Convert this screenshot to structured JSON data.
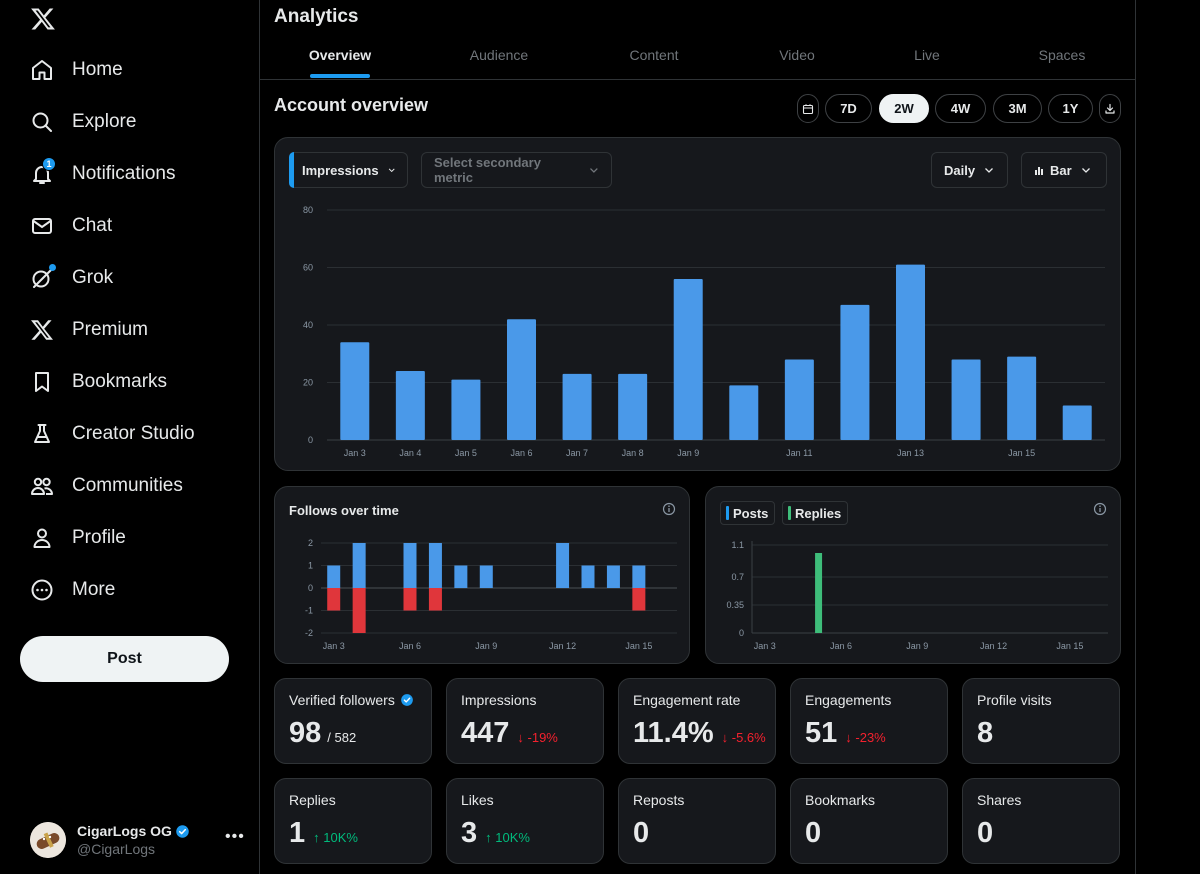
{
  "sidebar": {
    "nav": [
      {
        "label": "Home",
        "icon": "home-icon"
      },
      {
        "label": "Explore",
        "icon": "search-icon"
      },
      {
        "label": "Notifications",
        "icon": "bell-icon",
        "badge": "1"
      },
      {
        "label": "Chat",
        "icon": "mail-icon"
      },
      {
        "label": "Grok",
        "icon": "grok-icon"
      },
      {
        "label": "Premium",
        "icon": "x-logo-icon"
      },
      {
        "label": "Bookmarks",
        "icon": "bookmark-icon"
      },
      {
        "label": "Creator Studio",
        "icon": "flask-icon"
      },
      {
        "label": "Communities",
        "icon": "people-icon"
      },
      {
        "label": "Profile",
        "icon": "person-icon"
      },
      {
        "label": "More",
        "icon": "more-circle-icon"
      }
    ],
    "post_label": "Post",
    "account": {
      "name": "CigarLogs OG",
      "handle": "@CigarLogs"
    }
  },
  "header": {
    "title": "Analytics"
  },
  "tabs": [
    "Overview",
    "Audience",
    "Content",
    "Video",
    "Live",
    "Spaces"
  ],
  "overview": {
    "title": "Account overview",
    "ranges": [
      "7D",
      "2W",
      "4W",
      "3M",
      "1Y"
    ],
    "active_range": "2W"
  },
  "main_chart": {
    "primary_metric": "Impressions",
    "secondary_placeholder": "Select secondary metric",
    "interval": "Daily",
    "chart_type_label": "Bar"
  },
  "follows": {
    "title": "Follows over time"
  },
  "posts_chart": {
    "legend": [
      "Posts",
      "Replies"
    ]
  },
  "colors": {
    "accent": "#1d9bf0",
    "bar_blue": "#4a99e9",
    "negative": "#e0363b",
    "replies_green": "#3ebd7a"
  },
  "chart_data": [
    {
      "type": "bar",
      "title": "Impressions",
      "categories": [
        "Jan 3",
        "Jan 4",
        "Jan 5",
        "Jan 6",
        "Jan 7",
        "Jan 8",
        "Jan 9",
        "Jan 10",
        "Jan 11",
        "Jan 12",
        "Jan 13",
        "Jan 14",
        "Jan 15",
        "Jan 16"
      ],
      "tick_labels": [
        "Jan 3",
        "Jan 4",
        "Jan 5",
        "Jan 6",
        "Jan 7",
        "Jan 8",
        "Jan 9",
        "",
        "Jan 11",
        "",
        "Jan 13",
        "",
        "Jan 15",
        ""
      ],
      "values": [
        34,
        24,
        21,
        42,
        23,
        23,
        56,
        19,
        28,
        47,
        61,
        28,
        29,
        12
      ],
      "ylim": [
        0,
        80
      ],
      "yticks": [
        0,
        20,
        40,
        60,
        80
      ],
      "grid": true
    },
    {
      "type": "bar",
      "title": "Follows over time",
      "categories": [
        "Jan 3",
        "Jan 4",
        "Jan 5",
        "Jan 6",
        "Jan 7",
        "Jan 8",
        "Jan 9",
        "Jan 10",
        "Jan 11",
        "Jan 12",
        "Jan 13",
        "Jan 14",
        "Jan 15",
        "Jan 16"
      ],
      "tick_labels": [
        "Jan 3",
        "",
        "",
        "Jan 6",
        "",
        "",
        "Jan 9",
        "",
        "",
        "Jan 12",
        "",
        "",
        "Jan 15",
        ""
      ],
      "series": [
        {
          "name": "Follows",
          "values": [
            1,
            2,
            0,
            2,
            2,
            1,
            1,
            0,
            0,
            2,
            1,
            1,
            1,
            0
          ]
        },
        {
          "name": "Unfollows",
          "values": [
            -1,
            -2,
            0,
            -1,
            -1,
            0,
            0,
            0,
            0,
            0,
            0,
            0,
            -1,
            0
          ]
        }
      ],
      "ylim": [
        -2,
        2
      ],
      "yticks": [
        -2,
        -1,
        0,
        1,
        2
      ]
    },
    {
      "type": "bar",
      "title": "Posts and Replies",
      "categories": [
        "Jan 3",
        "Jan 4",
        "Jan 5",
        "Jan 6",
        "Jan 7",
        "Jan 8",
        "Jan 9",
        "Jan 10",
        "Jan 11",
        "Jan 12",
        "Jan 13",
        "Jan 14",
        "Jan 15",
        "Jan 16"
      ],
      "tick_labels": [
        "Jan 3",
        "",
        "",
        "Jan 6",
        "",
        "",
        "Jan 9",
        "",
        "",
        "Jan 12",
        "",
        "",
        "Jan 15",
        ""
      ],
      "series": [
        {
          "name": "Posts",
          "values": [
            0,
            0,
            0,
            0,
            0,
            0,
            0,
            0,
            0,
            0,
            0,
            0,
            0,
            0
          ]
        },
        {
          "name": "Replies",
          "values": [
            0,
            0,
            1,
            0,
            0,
            0,
            0,
            0,
            0,
            0,
            0,
            0,
            0,
            0
          ]
        }
      ],
      "ylim": [
        0,
        1.1
      ],
      "yticks": [
        0,
        0.35,
        0.7,
        1.1
      ],
      "ytick_labels": [
        "0",
        "0.35",
        "0.7",
        "1.1"
      ]
    }
  ],
  "stats": [
    {
      "label": "Verified followers",
      "value": "98",
      "sub": "/ 582",
      "verified": true
    },
    {
      "label": "Impressions",
      "value": "447",
      "delta": "-19%",
      "dir": "down"
    },
    {
      "label": "Engagement rate",
      "value": "11.4%",
      "delta": "-5.6%",
      "dir": "down"
    },
    {
      "label": "Engagements",
      "value": "51",
      "delta": "-23%",
      "dir": "down"
    },
    {
      "label": "Profile visits",
      "value": "8"
    },
    {
      "label": "Replies",
      "value": "1",
      "delta": "10K%",
      "dir": "up"
    },
    {
      "label": "Likes",
      "value": "3",
      "delta": "10K%",
      "dir": "up"
    },
    {
      "label": "Reposts",
      "value": "0"
    },
    {
      "label": "Bookmarks",
      "value": "0"
    },
    {
      "label": "Shares",
      "value": "0"
    }
  ]
}
